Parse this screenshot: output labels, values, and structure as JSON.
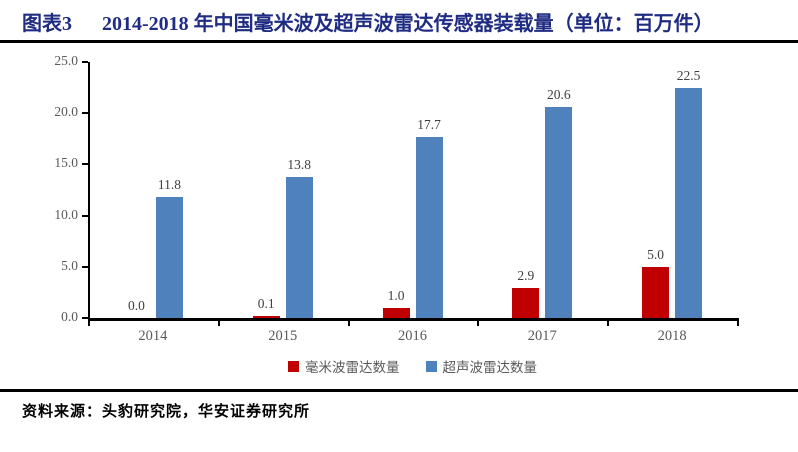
{
  "header": {
    "figure_label": "图表3",
    "title": "2014-2018 年中国毫米波及超声波雷达传感器装载量（单位：百万件）"
  },
  "chart_data": {
    "type": "bar",
    "categories": [
      "2014",
      "2015",
      "2016",
      "2017",
      "2018"
    ],
    "series": [
      {
        "name": "毫米波雷达数量",
        "color": "#C00000",
        "values": [
          0.0,
          0.1,
          1.0,
          2.9,
          5.0
        ]
      },
      {
        "name": "超声波雷达数量",
        "color": "#4F81BD",
        "values": [
          11.8,
          13.8,
          17.7,
          20.6,
          22.5
        ]
      }
    ],
    "title": "2014-2018 年中国毫米波及超声波雷达传感器装载量（单位：百万件）",
    "xlabel": "",
    "ylabel": "",
    "ylim": [
      0,
      25
    ],
    "ytick_step": 5,
    "ytick_labels": [
      "0.0",
      "5.0",
      "10.0",
      "15.0",
      "20.0",
      "25.0"
    ],
    "grid": false,
    "legend_position": "bottom",
    "value_labels": true
  },
  "footer": {
    "source": "资料来源：头豹研究院，华安证券研究所"
  },
  "colors": {
    "title_navy": "#1F2C82",
    "axis_black": "#000000",
    "tick_label_gray": "#595959",
    "value_label_gray": "#3f3f3f",
    "mmwave_red": "#C00000",
    "ultrasonic_blue": "#4F81BD"
  }
}
